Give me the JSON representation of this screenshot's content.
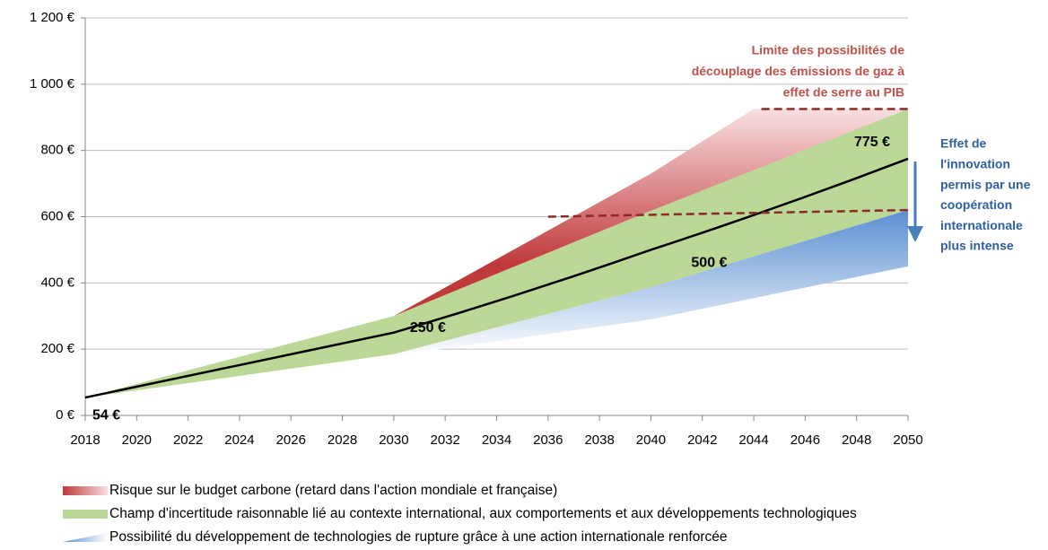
{
  "chart_data": {
    "type": "line",
    "xlim": [
      2018,
      2050
    ],
    "ylim": [
      0,
      1200
    ],
    "xticks": [
      2018,
      2020,
      2022,
      2024,
      2026,
      2028,
      2030,
      2032,
      2034,
      2036,
      2038,
      2040,
      2042,
      2044,
      2046,
      2048,
      2050
    ],
    "yticks": [
      {
        "value": 0,
        "label": "0 €"
      },
      {
        "value": 200,
        "label": "200 €"
      },
      {
        "value": 400,
        "label": "400 €"
      },
      {
        "value": 600,
        "label": "600 €"
      },
      {
        "value": 800,
        "label": "800 €"
      },
      {
        "value": 1000,
        "label": "1 000 €"
      },
      {
        "value": 1200,
        "label": "1 200 €"
      }
    ],
    "grid": true,
    "series": [
      {
        "name": "Risque sur le budget carbone (retard dans l'action mondiale et française)",
        "kind": "band",
        "color": "#c0393b",
        "fade_color": "#f9dfe1",
        "x": [
          2030,
          2040,
          2044,
          2050
        ],
        "lower": [
          300,
          618,
          720,
          925
        ],
        "upper": [
          300,
          730,
          925,
          925
        ]
      },
      {
        "name": "Champ d'incertitude raisonnable lié au contexte international, aux comportements et aux développements technologiques",
        "kind": "band",
        "color": "#bcd896",
        "fade_color": "#bcd896",
        "x": [
          2018,
          2030,
          2040,
          2050
        ],
        "lower": [
          54,
          185,
          387,
          620
        ],
        "upper": [
          54,
          300,
          618,
          925
        ]
      },
      {
        "name": "Possibilité du développement de technologies de rupture grâce à une action internationale renforcée",
        "kind": "band",
        "color": "#5a8fd2",
        "fade_color": "#ffffff",
        "x": [
          2030,
          2040,
          2050
        ],
        "lower": [
          180,
          290,
          450
        ],
        "upper": [
          185,
          387,
          620
        ]
      },
      {
        "kind": "line",
        "color": "#000000",
        "x": [
          2018,
          2030,
          2040,
          2050
        ],
        "values": [
          54,
          250,
          500,
          775
        ],
        "value_labels": [
          "54 €",
          "250 €",
          "500 €",
          "775 €"
        ]
      }
    ],
    "reference_lines": [
      {
        "x": [
          2044.3,
          2050
        ],
        "values": [
          925,
          925
        ],
        "color": "#8b2a2a"
      },
      {
        "x": [
          2036,
          2050
        ],
        "values": [
          600,
          620
        ],
        "color": "#8b2a2a"
      }
    ],
    "annotations": [
      {
        "lines": [
          "Limite des possibilités de",
          "découplage des émissions de gaz à",
          "effet de serre au PIB"
        ],
        "color": "#c0504d"
      },
      {
        "lines": [
          "Effet de",
          "l'innovation",
          "permis par une",
          "coopération",
          "internationale",
          "plus intense"
        ],
        "color": "#2e5fa3"
      }
    ]
  }
}
